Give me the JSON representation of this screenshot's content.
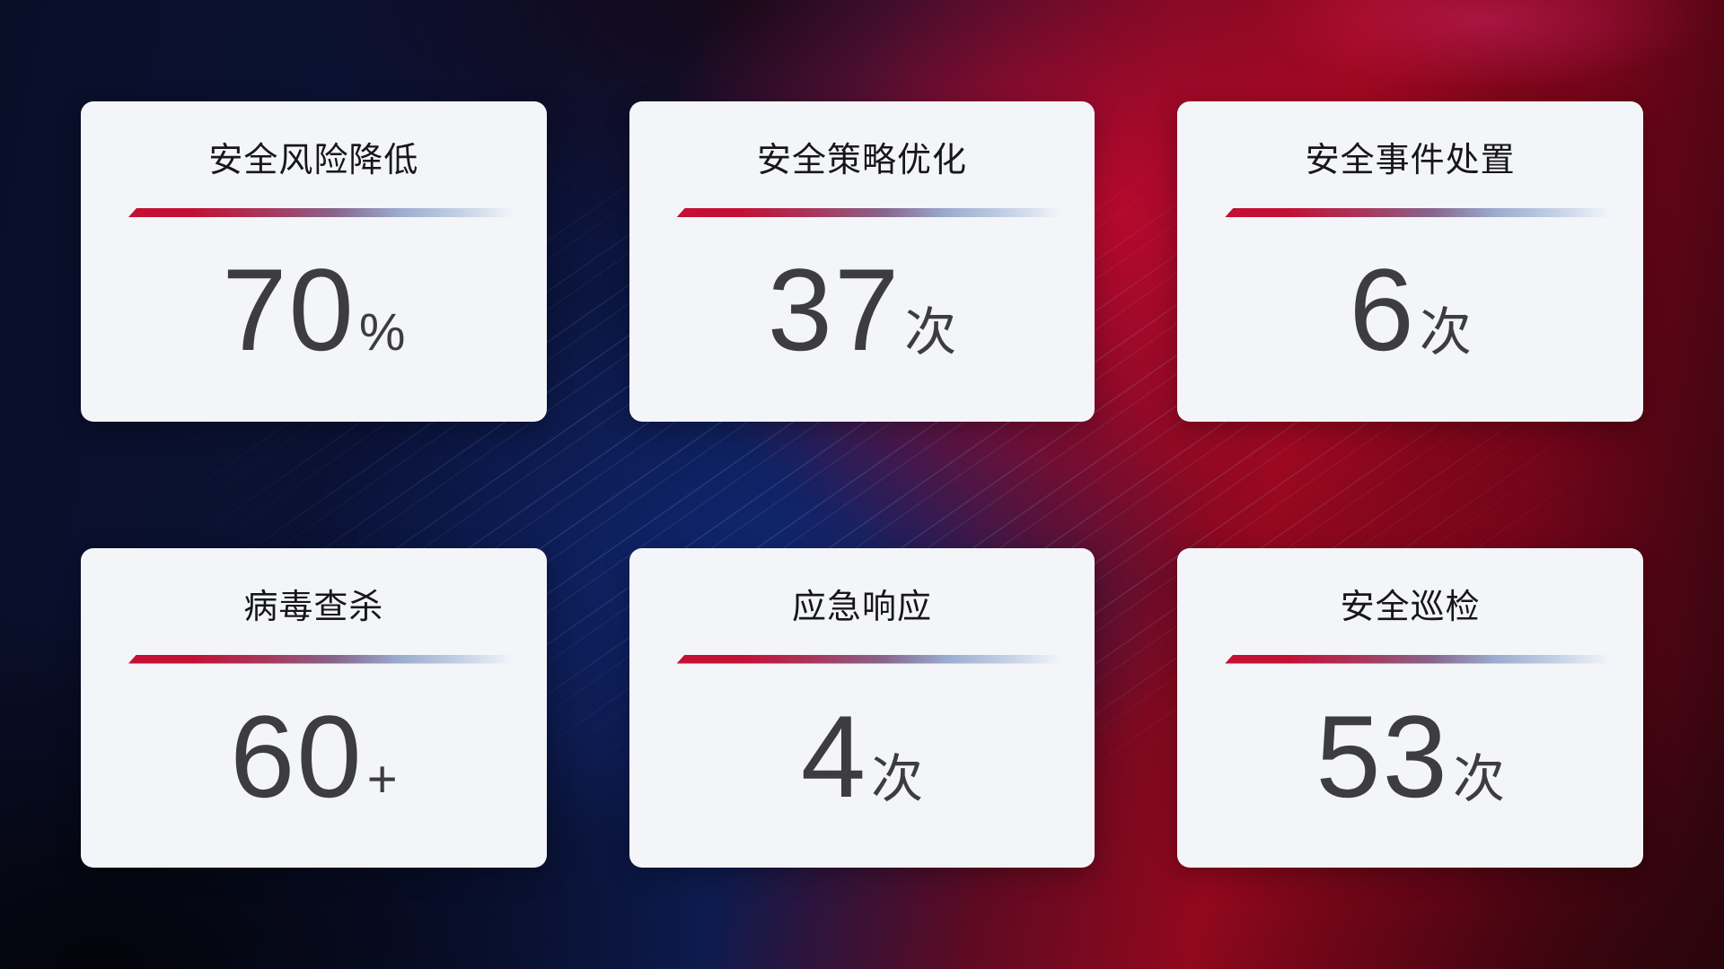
{
  "colors": {
    "card_background": "#f3f5f9",
    "title_color": "#17171b",
    "value_color": "#3d3d41",
    "divider_red": "#c50f33",
    "divider_light_blue": "#c2cfe4",
    "background_navy": "#0d1b4e",
    "background_red": "#93081d"
  },
  "cards": [
    {
      "id": "security-risk-reduction",
      "title": "安全风险降低",
      "value": "70",
      "suffix": "%"
    },
    {
      "id": "security-policy-optimization",
      "title": "安全策略优化",
      "value": "37",
      "suffix": "次"
    },
    {
      "id": "security-incident-handling",
      "title": "安全事件处置",
      "value": "6",
      "suffix": "次"
    },
    {
      "id": "virus-scan",
      "title": "病毒查杀",
      "value": "60",
      "suffix": "+"
    },
    {
      "id": "emergency-response",
      "title": "应急响应",
      "value": "4",
      "suffix": "次"
    },
    {
      "id": "security-inspection",
      "title": "安全巡检",
      "value": "53",
      "suffix": "次"
    }
  ]
}
